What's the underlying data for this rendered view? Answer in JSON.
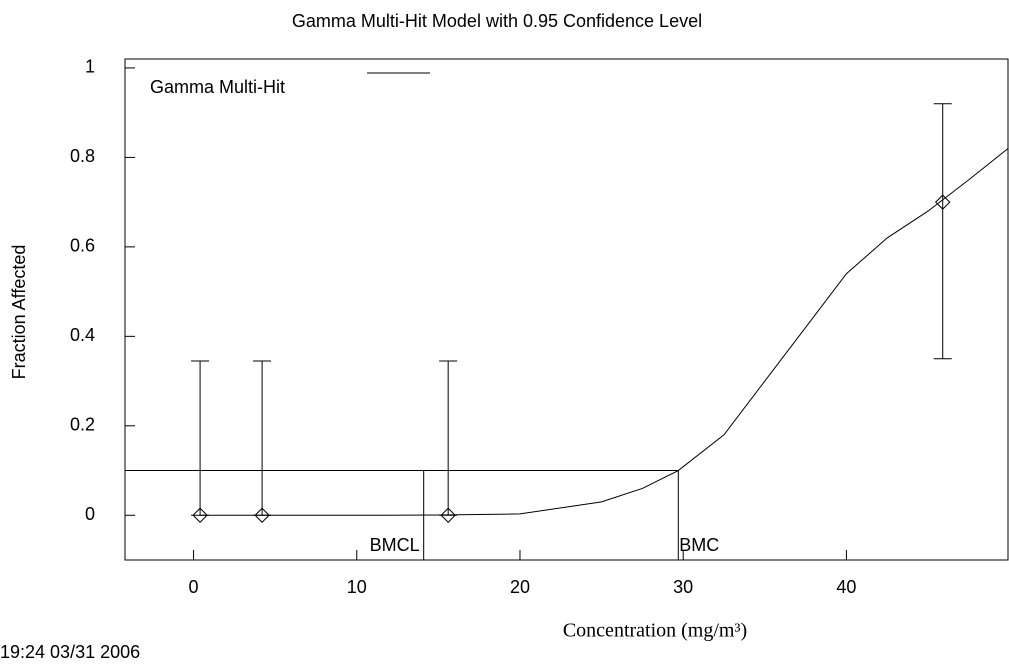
{
  "chart_data": {
    "type": "scatter",
    "title": "Gamma Multi-Hit Model with 0.95 Confidence Level",
    "x_label": "Concentration (mg/m³)",
    "y_label": "Fraction Affected",
    "timestamp": "19:24 03/31 2006",
    "legend": "Gamma Multi-Hit",
    "x": [
      0.4,
      4.2,
      15.6,
      45.9
    ],
    "values": [
      0,
      0,
      0,
      0.7
    ],
    "lower": [
      0,
      0,
      0,
      0.35
    ],
    "upper": [
      0.345,
      0.345,
      0.345,
      0.92
    ],
    "curve": {
      "x": [
        0.4,
        5,
        10,
        15,
        20,
        25,
        27.5,
        29.7,
        32.5,
        35,
        37.5,
        40,
        42.5,
        45,
        47.5,
        49.9
      ],
      "y": [
        0,
        0,
        0,
        0.0005,
        0.003,
        0.03,
        0.06,
        0.1,
        0.18,
        0.3,
        0.42,
        0.54,
        0.62,
        0.68,
        0.75,
        0.82
      ]
    },
    "bmr": 0.1,
    "bmcl": 14.1,
    "bmc": 29.7,
    "bmcl_label": "BMCL",
    "bmc_label": "BMC",
    "xlim": [
      -4.2,
      49.9
    ],
    "ylim": [
      -0.1,
      1.02
    ],
    "xticks": [
      0,
      10,
      20,
      30,
      40
    ],
    "yticks": [
      0,
      0.2,
      0.4,
      0.6,
      0.8,
      1
    ]
  }
}
